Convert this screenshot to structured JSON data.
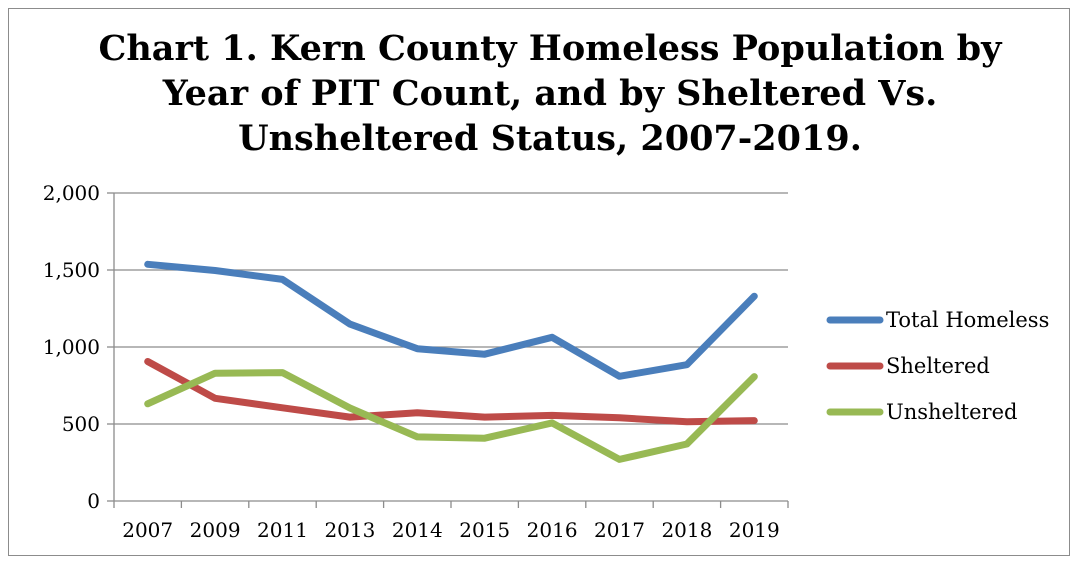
{
  "chart_data": {
    "type": "line",
    "title_lines": [
      "Chart 1. Kern County Homeless Population by",
      "Year of PIT Count, and by Sheltered Vs.",
      "Unsheltered Status, 2007-2019."
    ],
    "categories": [
      "2007",
      "2009",
      "2011",
      "2013",
      "2014",
      "2015",
      "2016",
      "2017",
      "2018",
      "2019"
    ],
    "ylim": [
      0,
      2000
    ],
    "yticks": [
      0,
      500,
      1000,
      1500,
      2000
    ],
    "ytick_labels": [
      "0",
      "500",
      "1,000",
      "1,500",
      "2,000"
    ],
    "grid": true,
    "legend": "right",
    "series": [
      {
        "name": "Total Homeless",
        "color": "#4a7ebb",
        "values": [
          1537,
          1497,
          1439,
          1149,
          989,
          953,
          1063,
          810,
          885,
          1330
        ]
      },
      {
        "name": "Sheltered",
        "color": "#be4b48",
        "values": [
          906,
          667,
          605,
          545,
          573,
          545,
          556,
          540,
          515,
          522
        ]
      },
      {
        "name": "Unsheltered",
        "color": "#98b954",
        "values": [
          631,
          830,
          834,
          604,
          416,
          408,
          507,
          270,
          370,
          808
        ]
      }
    ]
  }
}
